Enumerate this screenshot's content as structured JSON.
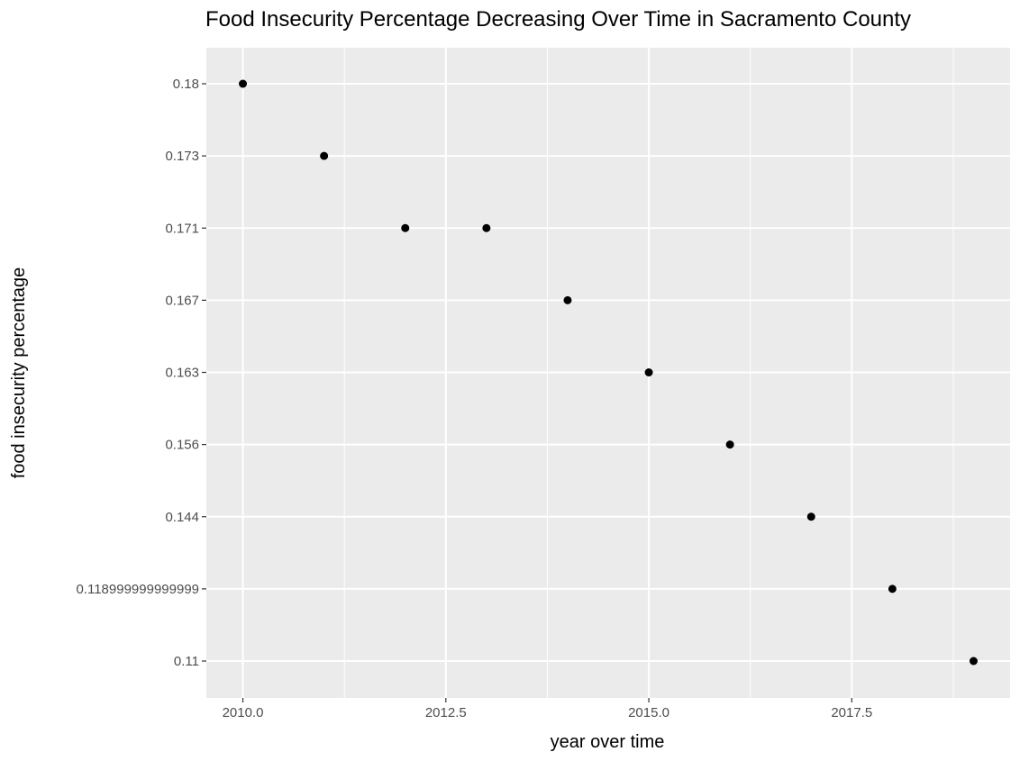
{
  "chart_data": {
    "type": "scatter",
    "title": "Food Insecurity Percentage Decreasing Over Time in Sacramento County",
    "xlabel": "year over time",
    "ylabel": "food insecurity percentage",
    "y_scale": "discrete",
    "x_ticks": [
      2010.0,
      2012.5,
      2015.0,
      2017.5
    ],
    "x_tick_labels": [
      "2010.0",
      "2012.5",
      "2015.0",
      "2017.5"
    ],
    "x_minor_ticks": [
      2011.25,
      2013.75,
      2016.25,
      2018.75
    ],
    "xlim": [
      2009.55,
      2019.45
    ],
    "y_categories": [
      "0.11",
      "0.118999999999999",
      "0.144",
      "0.156",
      "0.163",
      "0.167",
      "0.171",
      "0.173",
      "0.18"
    ],
    "grid": true,
    "panel_background": "#EBEBEB",
    "point_color": "#000000",
    "points": [
      {
        "x": 2010,
        "y": "0.18"
      },
      {
        "x": 2011,
        "y": "0.173"
      },
      {
        "x": 2012,
        "y": "0.171"
      },
      {
        "x": 2013,
        "y": "0.171"
      },
      {
        "x": 2014,
        "y": "0.167"
      },
      {
        "x": 2015,
        "y": "0.163"
      },
      {
        "x": 2016,
        "y": "0.156"
      },
      {
        "x": 2017,
        "y": "0.144"
      },
      {
        "x": 2018,
        "y": "0.118999999999999"
      },
      {
        "x": 2019,
        "y": "0.11"
      }
    ]
  }
}
